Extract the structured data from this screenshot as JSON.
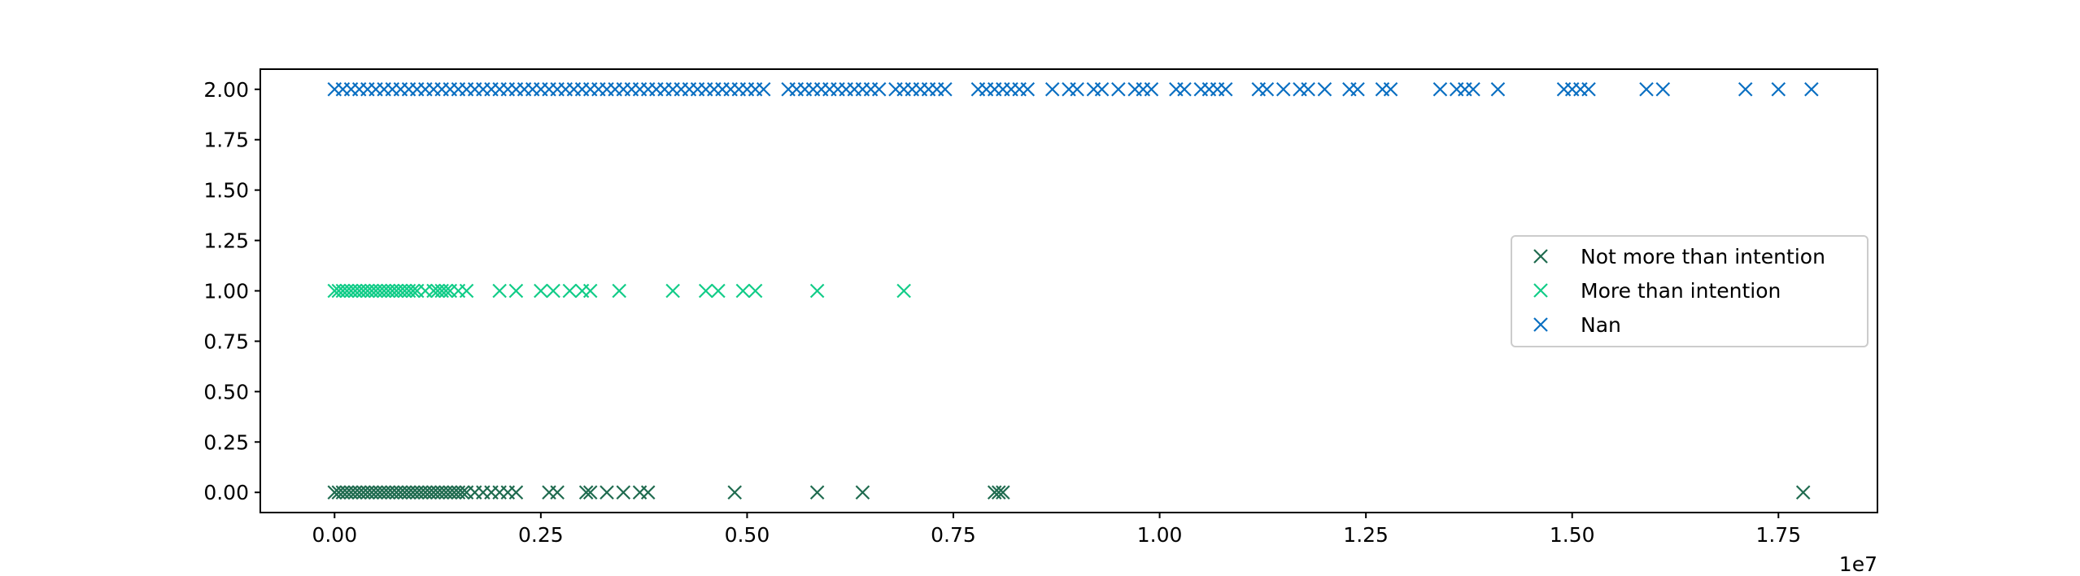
{
  "chart_data": {
    "type": "scatter",
    "marker": "x",
    "title": "",
    "xlabel": "",
    "ylabel": "",
    "x_offset_text": "1e7",
    "x_scale_factor": 10000000,
    "xlim": [
      -0.09,
      1.87
    ],
    "ylim": [
      -0.1,
      2.1
    ],
    "x_ticks": [
      {
        "value": 0.0,
        "label": "0.00"
      },
      {
        "value": 0.25,
        "label": "0.25"
      },
      {
        "value": 0.5,
        "label": "0.50"
      },
      {
        "value": 0.75,
        "label": "0.75"
      },
      {
        "value": 1.0,
        "label": "1.00"
      },
      {
        "value": 1.25,
        "label": "1.25"
      },
      {
        "value": 1.5,
        "label": "1.50"
      },
      {
        "value": 1.75,
        "label": "1.75"
      }
    ],
    "y_ticks": [
      {
        "value": 0.0,
        "label": "0.00"
      },
      {
        "value": 0.25,
        "label": "0.25"
      },
      {
        "value": 0.5,
        "label": "0.50"
      },
      {
        "value": 0.75,
        "label": "0.75"
      },
      {
        "value": 1.0,
        "label": "1.00"
      },
      {
        "value": 1.25,
        "label": "1.25"
      },
      {
        "value": 1.5,
        "label": "1.50"
      },
      {
        "value": 1.75,
        "label": "1.75"
      },
      {
        "value": 2.0,
        "label": "2.00"
      }
    ],
    "grid": false,
    "legend_position": "center-right",
    "series": [
      {
        "name": "Not more than intention",
        "color": "#1f6b4f",
        "y": 0,
        "x": [
          0.0,
          0.005,
          0.01,
          0.015,
          0.02,
          0.025,
          0.03,
          0.035,
          0.04,
          0.045,
          0.05,
          0.055,
          0.06,
          0.065,
          0.07,
          0.075,
          0.08,
          0.085,
          0.09,
          0.095,
          0.1,
          0.105,
          0.11,
          0.115,
          0.12,
          0.125,
          0.13,
          0.135,
          0.14,
          0.145,
          0.15,
          0.155,
          0.16,
          0.17,
          0.18,
          0.19,
          0.2,
          0.21,
          0.22,
          0.26,
          0.27,
          0.305,
          0.31,
          0.33,
          0.35,
          0.37,
          0.38,
          0.485,
          0.585,
          0.64,
          0.8,
          0.805,
          0.81,
          1.78
        ]
      },
      {
        "name": "More than intention",
        "color": "#12cc88",
        "y": 1,
        "x": [
          0.0,
          0.005,
          0.01,
          0.015,
          0.02,
          0.025,
          0.03,
          0.035,
          0.04,
          0.045,
          0.05,
          0.055,
          0.06,
          0.065,
          0.07,
          0.075,
          0.08,
          0.085,
          0.09,
          0.095,
          0.1,
          0.11,
          0.12,
          0.125,
          0.13,
          0.135,
          0.14,
          0.15,
          0.16,
          0.2,
          0.22,
          0.25,
          0.265,
          0.285,
          0.3,
          0.31,
          0.345,
          0.41,
          0.45,
          0.465,
          0.495,
          0.51,
          0.585,
          0.69
        ]
      },
      {
        "name": "Nan",
        "color": "#0a6fc2",
        "y": 2,
        "x": [
          0.0,
          0.01,
          0.02,
          0.03,
          0.04,
          0.05,
          0.06,
          0.07,
          0.08,
          0.09,
          0.1,
          0.11,
          0.12,
          0.13,
          0.14,
          0.15,
          0.16,
          0.17,
          0.18,
          0.19,
          0.2,
          0.21,
          0.22,
          0.23,
          0.24,
          0.25,
          0.26,
          0.27,
          0.28,
          0.29,
          0.3,
          0.31,
          0.32,
          0.33,
          0.34,
          0.35,
          0.36,
          0.37,
          0.38,
          0.39,
          0.4,
          0.41,
          0.42,
          0.43,
          0.44,
          0.45,
          0.46,
          0.47,
          0.48,
          0.49,
          0.5,
          0.51,
          0.52,
          0.55,
          0.56,
          0.57,
          0.58,
          0.59,
          0.6,
          0.61,
          0.62,
          0.63,
          0.64,
          0.65,
          0.66,
          0.68,
          0.69,
          0.7,
          0.71,
          0.72,
          0.73,
          0.74,
          0.78,
          0.79,
          0.8,
          0.81,
          0.82,
          0.83,
          0.84,
          0.87,
          0.89,
          0.9,
          0.92,
          0.93,
          0.95,
          0.97,
          0.98,
          0.99,
          1.02,
          1.03,
          1.05,
          1.06,
          1.07,
          1.08,
          1.12,
          1.13,
          1.15,
          1.17,
          1.18,
          1.2,
          1.23,
          1.24,
          1.27,
          1.28,
          1.34,
          1.36,
          1.37,
          1.38,
          1.41,
          1.49,
          1.5,
          1.51,
          1.52,
          1.59,
          1.61,
          1.71,
          1.75,
          1.79
        ]
      }
    ]
  }
}
